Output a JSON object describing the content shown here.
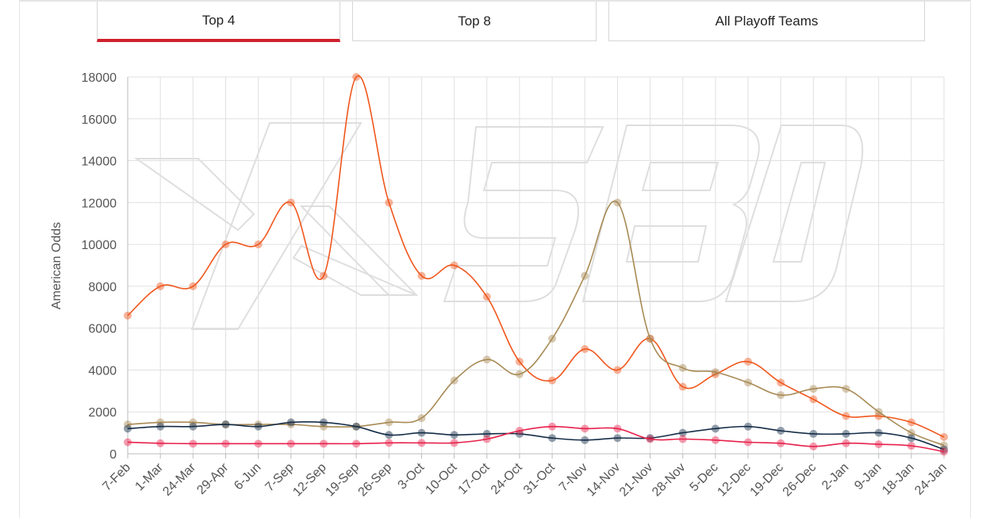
{
  "tabs": [
    {
      "label": "Top 4",
      "active": true
    },
    {
      "label": "Top 8",
      "active": false
    },
    {
      "label": "All Playoff Teams",
      "active": false
    }
  ],
  "watermark": "XSBD",
  "colors": {
    "accent": "#d0202e",
    "grid": "#e0e0e0"
  },
  "chart_data": {
    "type": "line",
    "ylabel": "American Odds",
    "xlabel": "",
    "ylim": [
      0,
      18000
    ],
    "yticks": [
      0,
      2000,
      4000,
      6000,
      8000,
      10000,
      12000,
      14000,
      16000,
      18000
    ],
    "grid": true,
    "categories": [
      "7-Feb",
      "1-Mar",
      "24-Mar",
      "29-Apr",
      "6-Jun",
      "7-Sep",
      "12-Sep",
      "19-Sep",
      "26-Sep",
      "3-Oct",
      "10-Oct",
      "17-Oct",
      "24-Oct",
      "31-Oct",
      "7-Nov",
      "14-Nov",
      "21-Nov",
      "28-Nov",
      "5-Dec",
      "12-Dec",
      "19-Dec",
      "26-Dec",
      "2-Jan",
      "9-Jan",
      "18-Jan",
      "24-Jan"
    ],
    "series": [
      {
        "color": "#f0561c",
        "values": [
          6600,
          8000,
          8000,
          10000,
          10000,
          12000,
          8500,
          18000,
          12000,
          8500,
          9000,
          7500,
          4400,
          3500,
          5000,
          4000,
          5500,
          3200,
          3800,
          4400,
          3400,
          2600,
          1800,
          1800,
          1500,
          800
        ]
      },
      {
        "color": "#a88a54",
        "values": [
          1400,
          1500,
          1500,
          1400,
          1400,
          1400,
          1300,
          1300,
          1500,
          1700,
          3500,
          4500,
          3800,
          5500,
          8500,
          12000,
          5500,
          4100,
          3900,
          3400,
          2800,
          3100,
          3100,
          2000,
          1000,
          400
        ]
      },
      {
        "color": "#152d48",
        "values": [
          1200,
          1300,
          1300,
          1400,
          1300,
          1500,
          1500,
          1300,
          900,
          1000,
          900,
          950,
          950,
          750,
          650,
          750,
          750,
          1000,
          1200,
          1300,
          1100,
          950,
          950,
          1000,
          750,
          200
        ]
      },
      {
        "color": "#e8214b",
        "values": [
          550,
          500,
          480,
          480,
          480,
          480,
          480,
          480,
          520,
          520,
          520,
          700,
          1100,
          1300,
          1200,
          1200,
          700,
          700,
          650,
          550,
          500,
          350,
          500,
          450,
          380,
          100
        ]
      }
    ]
  }
}
